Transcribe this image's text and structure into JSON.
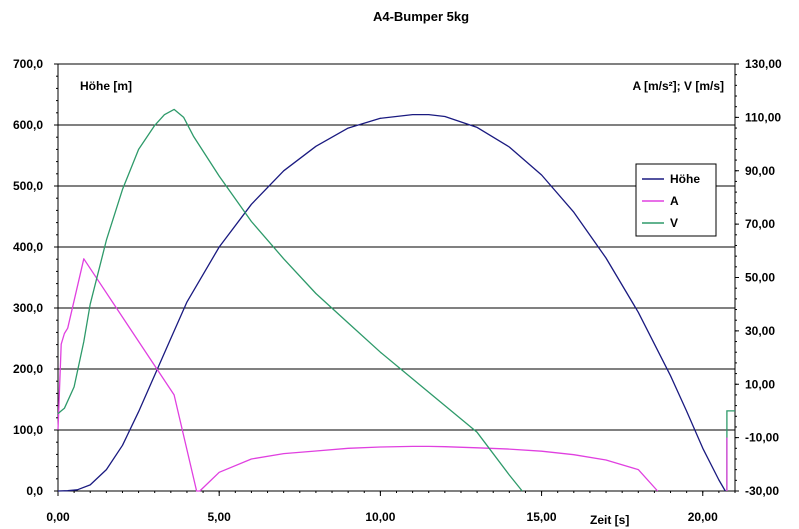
{
  "chart_data": {
    "type": "line",
    "title": "A4-Bumper 5kg",
    "xlabel": "Zeit [s]",
    "ylabel_left": "Höhe [m]",
    "ylabel_right": "A [m/s²]; V [m/s]",
    "xlim": [
      0,
      21
    ],
    "ylim_left": [
      0,
      700
    ],
    "ylim_right": [
      -30,
      130
    ],
    "xticks": [
      "0,00",
      "5,00",
      "10,00",
      "15,00",
      "20,00"
    ],
    "xtick_values": [
      0,
      5,
      10,
      15,
      20
    ],
    "yticks_left": [
      "0,0",
      "100,0",
      "200,0",
      "300,0",
      "400,0",
      "500,0",
      "600,0",
      "700,0"
    ],
    "ytick_values_left": [
      0,
      100,
      200,
      300,
      400,
      500,
      600,
      700
    ],
    "yticks_right": [
      "-30,00",
      "-10,00",
      "10,00",
      "30,00",
      "50,00",
      "70,00",
      "90,00",
      "110,00",
      "130,00"
    ],
    "ytick_values_right": [
      -30,
      -10,
      10,
      30,
      50,
      70,
      90,
      110,
      130
    ],
    "grid": "horizontal",
    "legend_position": "right",
    "series": [
      {
        "name": "Höhe",
        "axis": "left",
        "color": "#1a1a80",
        "x": [
          0,
          0.3,
          0.6,
          1.0,
          1.5,
          2.0,
          2.5,
          3.0,
          3.5,
          4.0,
          5.0,
          6.0,
          7.0,
          8.0,
          9.0,
          10.0,
          11.0,
          11.5,
          12.0,
          13.0,
          14.0,
          15.0,
          16.0,
          17.0,
          18.0,
          19.0,
          19.5,
          20.0,
          20.5,
          20.7
        ],
        "y": [
          0,
          0.5,
          2,
          10,
          35,
          75,
          130,
          190,
          250,
          310,
          400,
          470,
          525,
          565,
          595,
          611,
          617,
          617,
          614,
          596,
          564,
          518,
          457,
          382,
          293,
          189,
          131,
          70,
          18,
          0
        ]
      },
      {
        "name": "A",
        "axis": "right",
        "color": "#e040e0",
        "x": [
          0,
          0.1,
          0.2,
          0.3,
          0.8,
          3.6,
          4.3,
          4.4,
          5.0,
          6.0,
          7.0,
          8.0,
          9.0,
          10.0,
          11.0,
          11.5,
          12.0,
          13.0,
          14.0,
          15.0,
          16.0,
          17.0,
          18.0,
          18.6
        ],
        "y": [
          -7,
          25,
          29,
          31,
          57,
          6,
          -30,
          -30,
          -23,
          -18,
          -16,
          -15,
          -14,
          -13.5,
          -13.3,
          -13.3,
          -13.4,
          -13.8,
          -14.3,
          -15.1,
          -16.4,
          -18.4,
          -22,
          -30
        ]
      },
      {
        "name": "V",
        "axis": "right",
        "color": "#2e9a6a",
        "x": [
          0,
          0.1,
          0.2,
          0.5,
          0.8,
          1.0,
          1.5,
          2.0,
          2.5,
          3.0,
          3.3,
          3.6,
          3.9,
          4.2,
          5.0,
          6.0,
          7.0,
          8.0,
          9.0,
          10.0,
          11.0,
          12.0,
          13.0,
          14.0,
          14.4
        ],
        "y": [
          -1,
          0,
          1,
          9,
          26,
          40,
          64,
          83,
          98,
          107,
          111,
          113,
          110,
          103,
          88,
          71,
          57,
          44,
          33,
          22,
          12,
          2,
          -8,
          -24,
          -30
        ]
      }
    ],
    "annotations": [
      {
        "series": "V",
        "x": [
          20.75,
          20.75,
          21.0
        ],
        "y": [
          -30,
          0,
          0
        ]
      },
      {
        "series": "A",
        "x": [
          20.75,
          20.75
        ],
        "y": [
          -30,
          -10
        ]
      }
    ]
  }
}
